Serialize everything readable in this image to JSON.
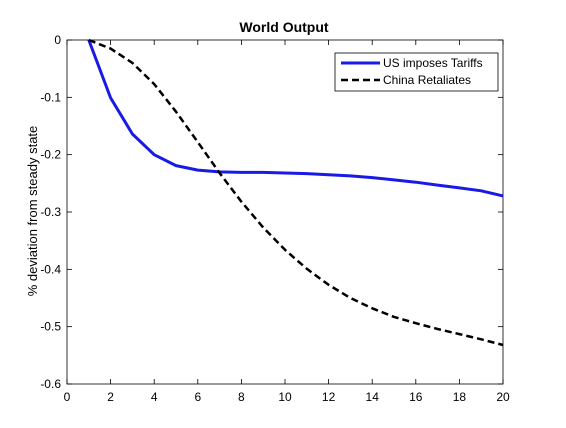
{
  "chart_data": {
    "type": "line",
    "title": "World Output",
    "xlabel": "",
    "ylabel": "% deviation from steady state",
    "xlim": [
      0,
      20
    ],
    "ylim": [
      -0.6,
      0
    ],
    "xticks": [
      0,
      2,
      4,
      6,
      8,
      10,
      12,
      14,
      16,
      18,
      20
    ],
    "yticks": [
      0,
      -0.1,
      -0.2,
      -0.3,
      -0.4,
      -0.5,
      -0.6
    ],
    "xtick_labels": [
      "0",
      "2",
      "4",
      "6",
      "8",
      "10",
      "12",
      "14",
      "16",
      "18",
      "20"
    ],
    "ytick_labels": [
      "0",
      "-0.1",
      "-0.2",
      "-0.3",
      "-0.4",
      "-0.5",
      "-0.6"
    ],
    "grid": false,
    "legend_position": "top-right",
    "series": [
      {
        "name": "US imposes Tariffs",
        "color": "#1a1ae6",
        "style": "solid",
        "x": [
          1,
          2,
          3,
          4,
          5,
          6,
          7,
          8,
          9,
          10,
          11,
          12,
          13,
          14,
          15,
          16,
          17,
          18,
          19,
          20
        ],
        "y": [
          0,
          -0.101,
          -0.164,
          -0.2,
          -0.219,
          -0.227,
          -0.23,
          -0.231,
          -0.231,
          -0.232,
          -0.233,
          -0.235,
          -0.237,
          -0.24,
          -0.244,
          -0.248,
          -0.253,
          -0.258,
          -0.263,
          -0.272
        ]
      },
      {
        "name": "China Retaliates",
        "color": "#000000",
        "style": "dashed",
        "x": [
          1,
          2,
          3,
          4,
          5,
          6,
          7,
          8,
          9,
          10,
          11,
          12,
          13,
          14,
          15,
          16,
          17,
          18,
          19,
          20
        ],
        "y": [
          0,
          -0.015,
          -0.04,
          -0.077,
          -0.125,
          -0.178,
          -0.232,
          -0.282,
          -0.327,
          -0.366,
          -0.399,
          -0.427,
          -0.45,
          -0.468,
          -0.483,
          -0.494,
          -0.504,
          -0.513,
          -0.522,
          -0.532
        ]
      }
    ]
  }
}
